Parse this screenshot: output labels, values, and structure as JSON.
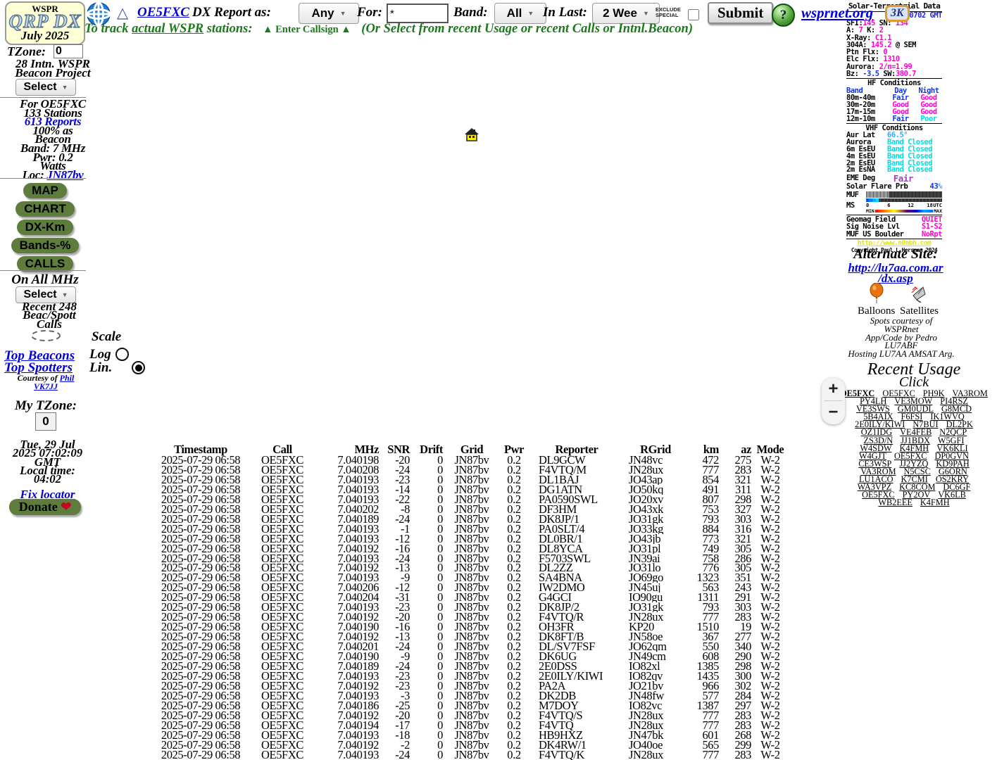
{
  "logo": {
    "top": "WSPR",
    "main": "QRP DX",
    "date": "July 2025"
  },
  "sidebar": {
    "tzone_label": "TZone:",
    "tzone_value": "0",
    "project_line1": "28 Intn. WSPR",
    "project_line2": "Beacon Project",
    "select_label": "Select",
    "select2_label": "Select",
    "stats": {
      "for_line": "For OE5FXC",
      "stations": "133 Stations",
      "reports": "613 Reports",
      "pct1": "100% as",
      "pct2": "Beacon",
      "band": "Band: 7 MHz",
      "pwr1": "Pwr: 0.2",
      "pwr2": "Watts",
      "loc_label": "Loc: ",
      "loc_value": "JN87bv"
    },
    "buttons": [
      "MAP",
      "CHART",
      "DX-Km",
      "Bands-%",
      "CALLS"
    ],
    "on_all": "On All MHz",
    "recent1": "Recent 248",
    "recent2": "Beac/Spott",
    "recent3": "Calls",
    "scale_label": "Scale",
    "log_label": "Log",
    "lin_label": "Lin.",
    "top_beacons": "Top Beacons",
    "top_spotters": "Top Spotters",
    "courtesy_prefix": "Courtesy of ",
    "courtesy_phil": "Phil",
    "courtesy_call": "VK7JJ",
    "my_tzone_label": "My TZone:",
    "my_tzone_value": "0",
    "clock": [
      "Tue, 29 Jul",
      "2025 07:02:09",
      "GMT",
      "Local time:",
      "04:02"
    ],
    "fix_locator": "Fix locator",
    "donate_label": "Donate",
    "donate_heart": "❤"
  },
  "header": {
    "triangle": "△",
    "callsign_link": "OE5FXC",
    "report_as_label": "DX Report as:",
    "report_as_value": "Any",
    "for_label": "For:",
    "for_value": "*",
    "band_label": "Band:",
    "band_value": "All",
    "in_last_label": "In Last:",
    "in_last_value": "2 Wee",
    "exclude_line1": "EXCLUDE",
    "exclude_line2": "SPECIAL",
    "submit_label": "Submit",
    "help_label": "?",
    "site_link": "wsprnet.org",
    "count_badge": "3K",
    "track_prefix": "To track ",
    "track_underline": "actual WSPR",
    "track_suffix": " stations:",
    "enter_callsign": "▲ Enter Callsign ▲",
    "select_hint": "(Or Select from recent Usage or recent Calls or Intnl.Beacon)"
  },
  "solar": {
    "title": "Solar-Terrestrial Data",
    "gmt": "0702 GMT",
    "lines": [
      [
        {
          "t": "SFI:",
          "c": "k"
        },
        {
          "t": "145",
          "c": "m"
        },
        {
          "t": " SN: ",
          "c": "k"
        },
        {
          "t": " 134",
          "c": "m"
        }
      ],
      [
        {
          "t": "A: ",
          "c": "k"
        },
        {
          "t": "7",
          "c": "m"
        },
        {
          "t": "  K: ",
          "c": "k"
        },
        {
          "t": "2",
          "c": "m"
        }
      ],
      [
        {
          "t": "X-Ray: ",
          "c": "k"
        },
        {
          "t": "C1.1",
          "c": "m"
        }
      ],
      [
        {
          "t": "304A: ",
          "c": "k"
        },
        {
          "t": "145.2",
          "c": "m"
        },
        {
          "t": " @ SEM",
          "c": "k"
        }
      ],
      [
        {
          "t": "Ptn Flx: ",
          "c": "k"
        },
        {
          "t": "0",
          "c": "m"
        }
      ],
      [
        {
          "t": "Elc Flx: ",
          "c": "k"
        },
        {
          "t": "1310",
          "c": "m"
        }
      ],
      [
        {
          "t": "Aurora:  ",
          "c": "k"
        },
        {
          "t": "2/n=1.99",
          "c": "m"
        }
      ],
      [
        {
          "t": "Bz: ",
          "c": "k"
        },
        {
          "t": "-3.5",
          "c": "b"
        },
        {
          "t": " SW:",
          "c": "k"
        },
        {
          "t": "380.7",
          "c": "m"
        }
      ]
    ],
    "hf_title": "HF Conditions",
    "hf_headers": [
      "Band",
      "Day",
      "Night"
    ],
    "hf_rows": [
      {
        "band": "80m-40m",
        "day": "Fair",
        "dc": "b",
        "night": "Good",
        "nc": "m"
      },
      {
        "band": "30m-20m",
        "day": "Good",
        "dc": "m",
        "night": "Good",
        "nc": "m"
      },
      {
        "band": "17m-15m",
        "day": "Good",
        "dc": "m",
        "night": "Good",
        "nc": "m"
      },
      {
        "band": "12m-10m",
        "day": "Fair",
        "dc": "b",
        "night": "Poor",
        "nc": "c"
      }
    ],
    "vhf_title": "VHF Conditions",
    "vhf_rows": [
      {
        "label": "Aur Lat",
        "value": "66.5°",
        "c": "lb"
      },
      {
        "label": "Aurora",
        "value": "Band Closed",
        "c": "c"
      },
      {
        "label": "6m EsEU",
        "value": "Band Closed",
        "c": "c"
      },
      {
        "label": "4m EsEU",
        "value": "Band Closed",
        "c": "c"
      },
      {
        "label": "2m EsEU",
        "value": "Band Closed",
        "c": "c"
      },
      {
        "label": "2m EsNA",
        "value": "Band Closed",
        "c": "c"
      }
    ],
    "eme_label": "EME Deg",
    "eme_value": "Fair",
    "flare_label": "Solar Flare Prb",
    "flare_value": "43",
    "flare_pct": "%",
    "muf_label": "MUF",
    "ms_label": "MS",
    "scale_ticks": [
      "0",
      "6",
      "12",
      "18",
      "UTC"
    ],
    "scale_min": "MIN",
    "scale_max": "MAX",
    "geomag": [
      {
        "label": "Geomag Field",
        "value": "QUIET"
      },
      {
        "label": "Sig Noise Lvl",
        "value": "S1-S2"
      },
      {
        "label": "MUF US Boulder",
        "value": "NoRpt"
      }
    ],
    "site": "http://www.n0nbh.com",
    "copyright": "Copyright Paul L Herrman 2024"
  },
  "alternate": {
    "title": "Alternate Site:",
    "link1": "http://lu7aa.com.ar",
    "link2": "/dx.asp"
  },
  "trackers": {
    "balloons": "Balloons",
    "satellites": "Satellites"
  },
  "credits": [
    "Spots courtesy of",
    "WSPRnet",
    "App/Code by Pedro",
    "LU7ABF",
    "Hosting LU7AA AMSAT Arg."
  ],
  "recent_usage": {
    "title": "Recent Usage",
    "subtitle": "Click",
    "rows": [
      [
        "OE5FXC",
        "OE5FXC",
        "PH9K",
        "VA3ROM"
      ],
      [
        "PY4LH",
        "VE3MOW",
        "PI4RSZ"
      ],
      [
        "VE3SWS",
        "GM0UDL",
        "G8MCD"
      ],
      [
        "5B4AIX",
        "F6FSI",
        "IK1WVQ"
      ],
      [
        "2E0ILY/KIWI",
        "N7BUI",
        "DL2PK"
      ],
      [
        "OZ1IDG",
        "VE4FEB",
        "N2QCP"
      ],
      [
        "ZS3D/N",
        "JJ1BDX",
        "W5GFI"
      ],
      [
        "W4SDW",
        "K4FMH",
        "VK6KLI"
      ],
      [
        "W4GJT",
        "OE5FXC",
        "DP0GVN"
      ],
      [
        "CE3WSP",
        "JJ2YZQ",
        "KD9PAH"
      ],
      [
        "VA3ROM",
        "N5CSC",
        "G6ORN"
      ],
      [
        "LU1ACO",
        "K7CMI",
        "OS2KRY"
      ],
      [
        "WA3VPZ",
        "KC8COM",
        "DC6GF"
      ],
      [
        "OE5FXC",
        "PY2OV",
        "VK6LB"
      ],
      [
        "WB2EEE",
        "K4FMH"
      ]
    ]
  },
  "map": {
    "zoom_in": "+",
    "zoom_out": "−"
  },
  "table": {
    "headers": [
      "Timestamp",
      "Call",
      "MHz",
      "SNR",
      "Drift",
      "Grid",
      "Pwr",
      "Reporter",
      "RGrid",
      "km",
      "az",
      "Mode"
    ],
    "rows": [
      [
        "2025-07-29 06:58",
        "OE5FXC",
        "7.040198",
        "-20",
        "0",
        "JN87bv",
        "0.2",
        "DL9GCW",
        "JN48vc",
        "472",
        "275",
        "W-2"
      ],
      [
        "2025-07-29 06:58",
        "OE5FXC",
        "7.040208",
        "-24",
        "0",
        "JN87bv",
        "0.2",
        "F4VTQ/M",
        "JN28ux",
        "777",
        "283",
        "W-2"
      ],
      [
        "2025-07-29 06:58",
        "OE5FXC",
        "7.040193",
        "-23",
        "0",
        "JN87bv",
        "0.2",
        "DL1BAJ",
        "JO43ap",
        "854",
        "321",
        "W-2"
      ],
      [
        "2025-07-29 06:58",
        "OE5FXC",
        "7.040193",
        "-14",
        "0",
        "JN87bv",
        "0.2",
        "DG1ATN",
        "JO50kq",
        "491",
        "311",
        "W-2"
      ],
      [
        "2025-07-29 06:58",
        "OE5FXC",
        "7.040193",
        "-22",
        "0",
        "JN87bv",
        "0.2",
        "PA0590SWL",
        "JO20xv",
        "807",
        "298",
        "W-2"
      ],
      [
        "2025-07-29 06:58",
        "OE5FXC",
        "7.040202",
        "-8",
        "0",
        "JN87bv",
        "0.2",
        "DF3HM",
        "JO43xk",
        "753",
        "327",
        "W-2"
      ],
      [
        "2025-07-29 06:58",
        "OE5FXC",
        "7.040189",
        "-24",
        "0",
        "JN87bv",
        "0.2",
        "DK8JP/1",
        "JO31gk",
        "793",
        "303",
        "W-2"
      ],
      [
        "2025-07-29 06:58",
        "OE5FXC",
        "7.040193",
        "-1",
        "0",
        "JN87bv",
        "0.2",
        "PA0SLT/4",
        "JO33kg",
        "884",
        "316",
        "W-2"
      ],
      [
        "2025-07-29 06:58",
        "OE5FXC",
        "7.040193",
        "-12",
        "0",
        "JN87bv",
        "0.2",
        "DL0BR/1",
        "JO43jb",
        "773",
        "321",
        "W-2"
      ],
      [
        "2025-07-29 06:58",
        "OE5FXC",
        "7.040192",
        "-16",
        "0",
        "JN87bv",
        "0.2",
        "DL8YCA",
        "JO31pl",
        "749",
        "305",
        "W-2"
      ],
      [
        "2025-07-29 06:58",
        "OE5FXC",
        "7.040193",
        "-24",
        "0",
        "JN87bv",
        "0.2",
        "F5703SWL",
        "JN39ai",
        "758",
        "286",
        "W-2"
      ],
      [
        "2025-07-29 06:58",
        "OE5FXC",
        "7.040192",
        "-13",
        "0",
        "JN87bv",
        "0.2",
        "DL2ZZ",
        "JO31lo",
        "776",
        "305",
        "W-2"
      ],
      [
        "2025-07-29 06:58",
        "OE5FXC",
        "7.040193",
        "-9",
        "0",
        "JN87bv",
        "0.2",
        "SA4BNA",
        "JO69go",
        "1323",
        "351",
        "W-2"
      ],
      [
        "2025-07-29 06:58",
        "OE5FXC",
        "7.040206",
        "-12",
        "0",
        "JN87bv",
        "0.2",
        "IW2DMO",
        "JN45uj",
        "563",
        "243",
        "W-2"
      ],
      [
        "2025-07-29 06:58",
        "OE5FXC",
        "7.040204",
        "-31",
        "0",
        "JN87bv",
        "0.2",
        "G4GCI",
        "IO90gu",
        "1311",
        "291",
        "W-2"
      ],
      [
        "2025-07-29 06:58",
        "OE5FXC",
        "7.040193",
        "-23",
        "0",
        "JN87bv",
        "0.2",
        "DK8JP/2",
        "JO31gk",
        "793",
        "303",
        "W-2"
      ],
      [
        "2025-07-29 06:58",
        "OE5FXC",
        "7.040192",
        "-20",
        "0",
        "JN87bv",
        "0.2",
        "F4VTQ/R",
        "JN28ux",
        "777",
        "283",
        "W-2"
      ],
      [
        "2025-07-29 06:58",
        "OE5FXC",
        "7.040190",
        "-16",
        "0",
        "JN87bv",
        "0.2",
        "OH3FR",
        "KP20",
        "1510",
        "19",
        "W-2"
      ],
      [
        "2025-07-29 06:58",
        "OE5FXC",
        "7.040192",
        "-13",
        "0",
        "JN87bv",
        "0.2",
        "DK8FT/B",
        "JN58oe",
        "367",
        "277",
        "W-2"
      ],
      [
        "2025-07-29 06:58",
        "OE5FXC",
        "7.040201",
        "-24",
        "0",
        "JN87bv",
        "0.2",
        "DL/SV7FSF",
        "JO62qm",
        "550",
        "340",
        "W-2"
      ],
      [
        "2025-07-29 06:58",
        "OE5FXC",
        "7.040190",
        "-9",
        "0",
        "JN87bv",
        "0.2",
        "DK6UG",
        "JN49cm",
        "608",
        "290",
        "W-2"
      ],
      [
        "2025-07-29 06:58",
        "OE5FXC",
        "7.040189",
        "-24",
        "0",
        "JN87bv",
        "0.2",
        "2E0DSS",
        "IO82xl",
        "1385",
        "298",
        "W-2"
      ],
      [
        "2025-07-29 06:58",
        "OE5FXC",
        "7.040193",
        "-23",
        "0",
        "JN87bv",
        "0.2",
        "2E0ILY/KIWI",
        "IO82qv",
        "1435",
        "300",
        "W-2"
      ],
      [
        "2025-07-29 06:58",
        "OE5FXC",
        "7.040192",
        "-23",
        "0",
        "JN87bv",
        "0.2",
        "PA2A",
        "JO21bv",
        "966",
        "302",
        "W-2"
      ],
      [
        "2025-07-29 06:58",
        "OE5FXC",
        "7.040193",
        "-3",
        "0",
        "JN87bv",
        "0.2",
        "DK2DB",
        "JN48fw",
        "577",
        "284",
        "W-2"
      ],
      [
        "2025-07-29 06:58",
        "OE5FXC",
        "7.040186",
        "-25",
        "0",
        "JN87bv",
        "0.2",
        "M7DOY",
        "IO82vc",
        "1387",
        "297",
        "W-2"
      ],
      [
        "2025-07-29 06:58",
        "OE5FXC",
        "7.040192",
        "-20",
        "0",
        "JN87bv",
        "0.2",
        "F4VTQ/S",
        "JN28ux",
        "777",
        "283",
        "W-2"
      ],
      [
        "2025-07-29 06:58",
        "OE5FXC",
        "7.040194",
        "-17",
        "0",
        "JN87bv",
        "0.2",
        "F4VTQ",
        "JN28ux",
        "777",
        "283",
        "W-2"
      ],
      [
        "2025-07-29 06:58",
        "OE5FXC",
        "7.040193",
        "-18",
        "0",
        "JN87bv",
        "0.2",
        "HB9HXZ",
        "JN47bk",
        "601",
        "268",
        "W-2"
      ],
      [
        "2025-07-29 06:58",
        "OE5FXC",
        "7.040192",
        "-2",
        "0",
        "JN87bv",
        "0.2",
        "DK4RW/1",
        "JO40oe",
        "565",
        "299",
        "W-2"
      ],
      [
        "2025-07-29 06:58",
        "OE5FXC",
        "7.040193",
        "-24",
        "0",
        "JN87bv",
        "0.2",
        "F4VTQ/K",
        "JN28ux",
        "777",
        "283",
        "W-2"
      ]
    ]
  },
  "colors": {
    "accent_green": "#1A7A1A",
    "link_blue": "#0000DD",
    "value_magenta": "#FF00D0",
    "band_closed_cyan": "#00DDDD",
    "button_green": "#5E7C3C",
    "badge_border_orange": "#E09A30"
  }
}
